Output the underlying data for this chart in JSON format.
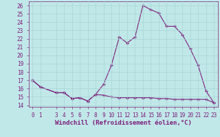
{
  "line1_x": [
    0,
    1,
    3,
    4,
    5,
    6,
    7,
    8,
    9,
    10,
    11,
    12,
    13,
    14,
    15,
    16,
    17,
    18,
    19,
    20,
    21,
    22,
    23
  ],
  "line1_y": [
    17.0,
    16.2,
    15.5,
    15.5,
    14.8,
    14.9,
    14.5,
    15.3,
    16.5,
    18.8,
    22.2,
    21.5,
    22.2,
    26.0,
    25.5,
    25.1,
    23.5,
    23.5,
    22.5,
    20.8,
    18.8,
    15.7,
    14.3
  ],
  "line2_x": [
    0,
    1,
    3,
    4,
    5,
    6,
    7,
    8,
    9,
    10,
    11,
    12,
    13,
    14,
    15,
    16,
    17,
    18,
    19,
    20,
    21,
    22,
    23
  ],
  "line2_y": [
    17.0,
    16.2,
    15.5,
    15.5,
    14.8,
    14.9,
    14.5,
    15.3,
    15.2,
    15.0,
    14.9,
    14.9,
    14.9,
    14.9,
    14.9,
    14.8,
    14.8,
    14.7,
    14.7,
    14.7,
    14.7,
    14.7,
    14.3
  ],
  "line_color": "#7B1B7B",
  "bg_color": "#c0e8e8",
  "grid_color": "#a8d4d4",
  "xlabel": "Windchill (Refroidissement éolien,°C)",
  "ylim": [
    13.8,
    26.5
  ],
  "xlim": [
    -0.5,
    23.5
  ],
  "yticks": [
    14,
    15,
    16,
    17,
    18,
    19,
    20,
    21,
    22,
    23,
    24,
    25,
    26
  ],
  "xticks": [
    0,
    1,
    3,
    4,
    5,
    6,
    7,
    8,
    9,
    10,
    11,
    12,
    13,
    14,
    15,
    16,
    17,
    18,
    19,
    20,
    21,
    22,
    23
  ],
  "font_color": "#7B1B7B",
  "label_fontsize": 6.5,
  "tick_fontsize": 5.5
}
